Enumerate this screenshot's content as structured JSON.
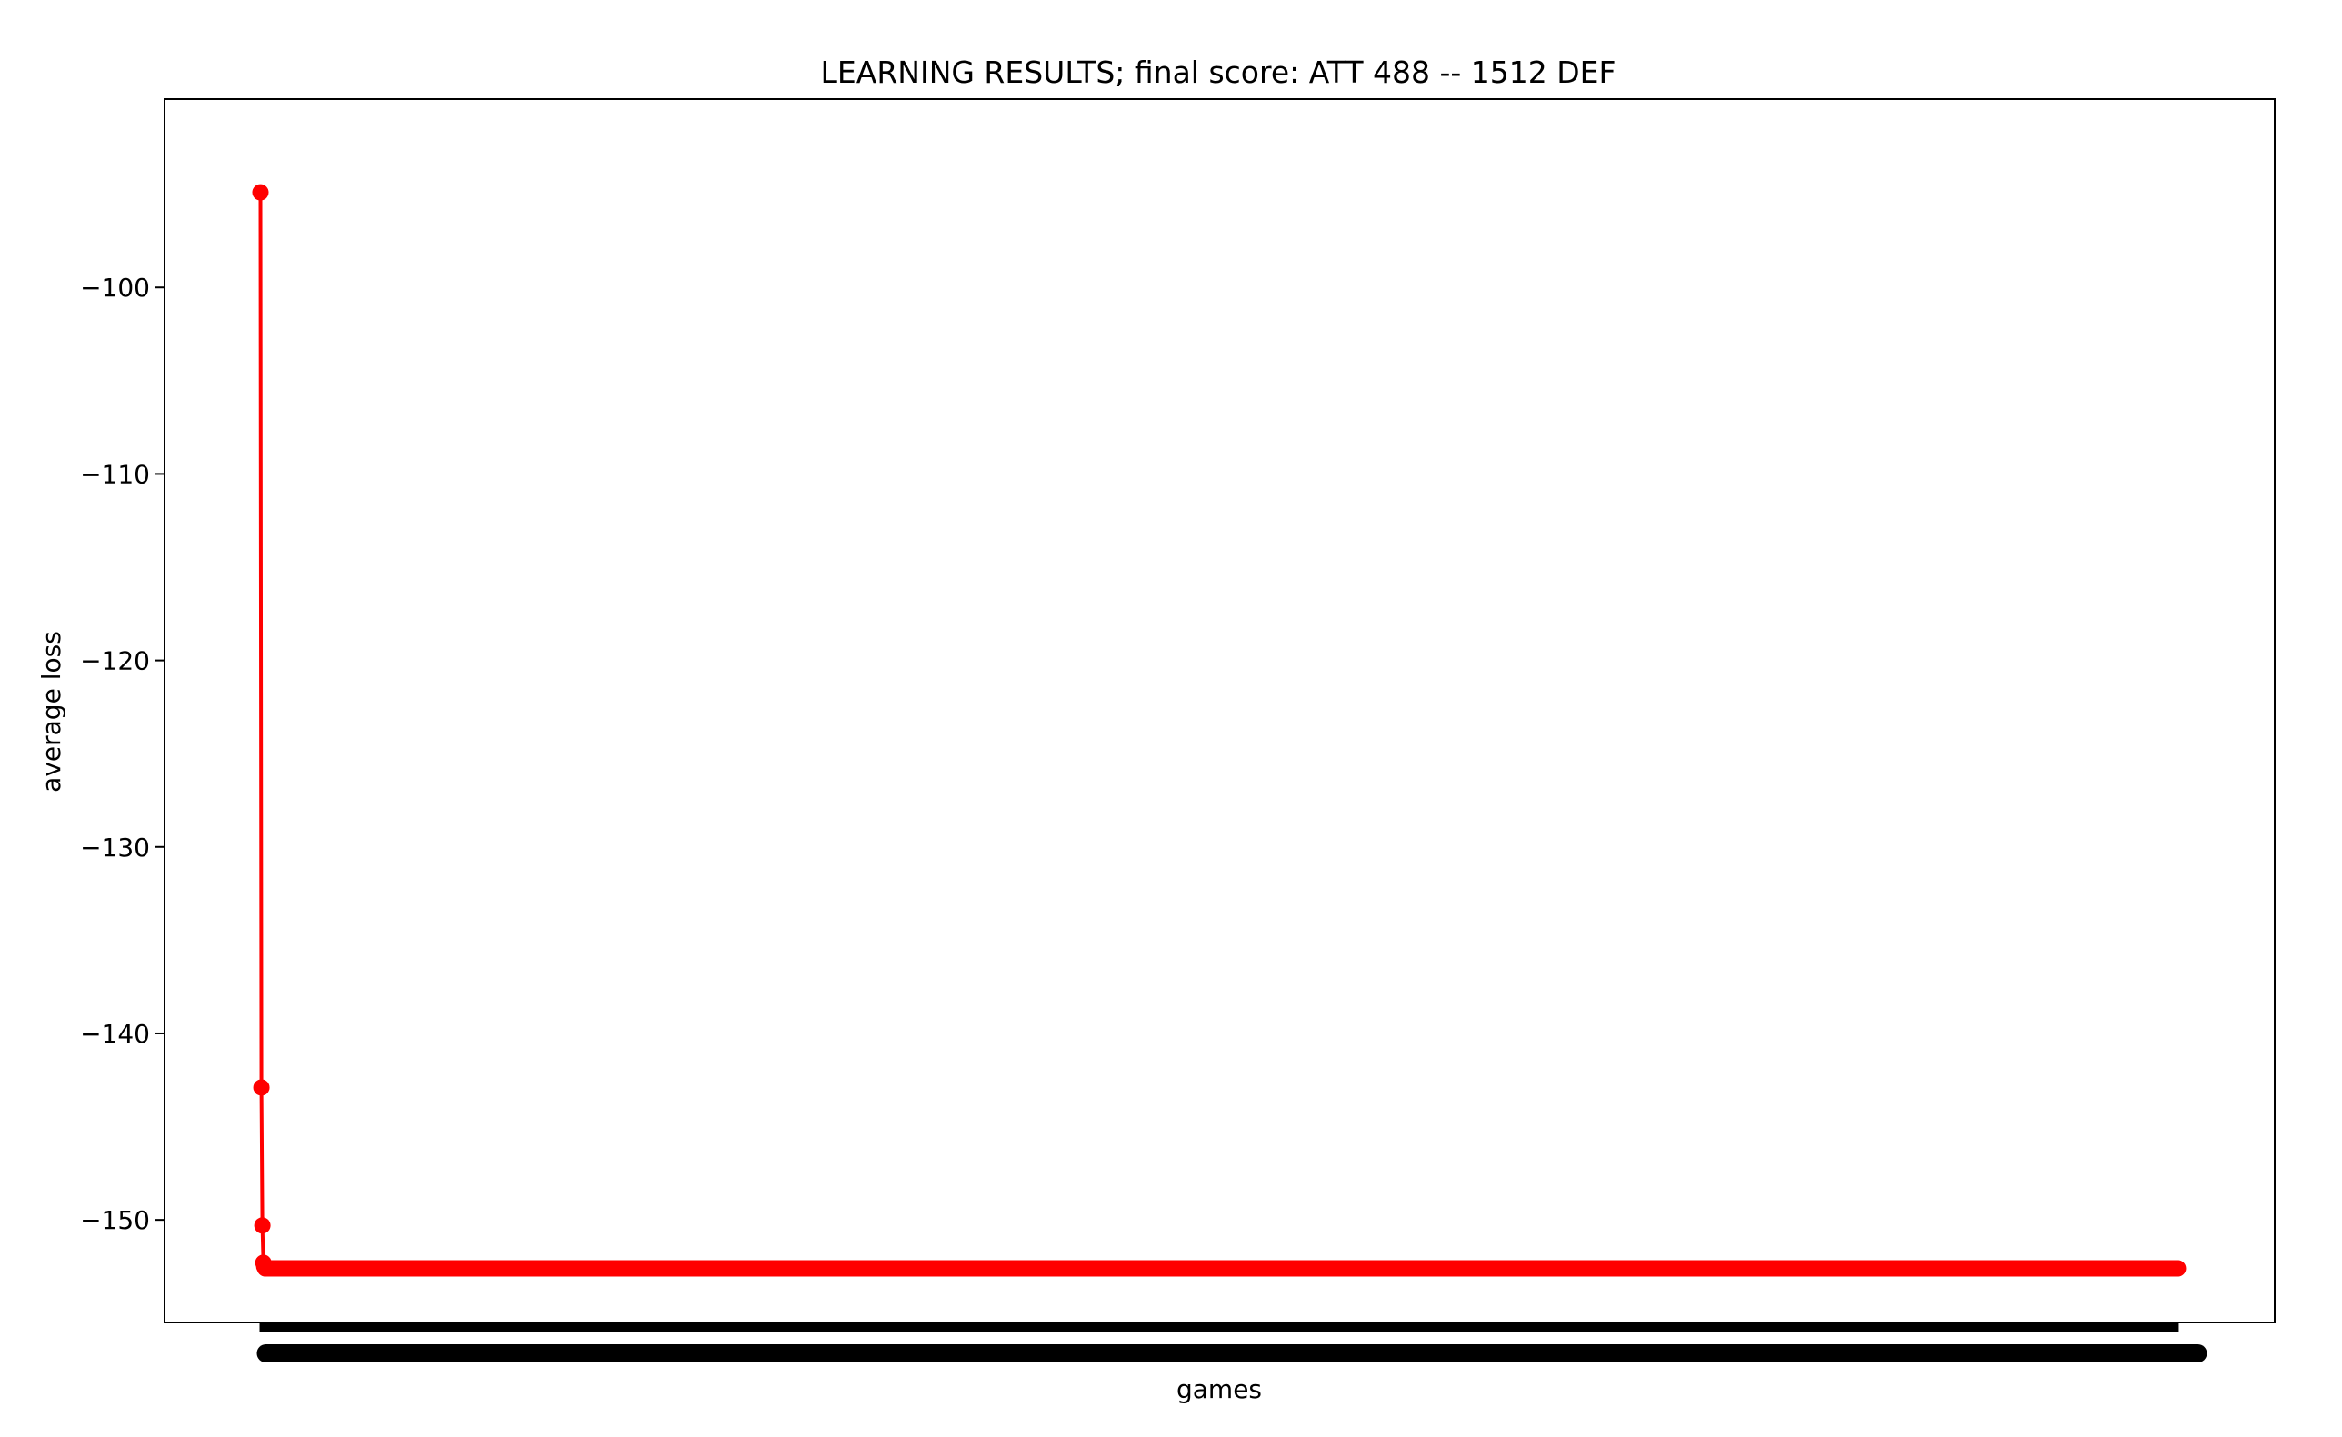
{
  "chart_data": {
    "type": "line",
    "title": "LEARNING RESULTS; final score: ATT 488 -- 1512 DEF",
    "xlabel": "games",
    "ylabel": "average loss",
    "xlim": [
      -100,
      2100
    ],
    "ylim": [
      -155.5,
      -89.9
    ],
    "yticks": [
      -100,
      -110,
      -120,
      -130,
      -140,
      -150
    ],
    "ytick_labels": [
      "−100",
      "−110",
      "−120",
      "−130",
      "−140",
      "−150"
    ],
    "xtick_range": [
      0,
      1999
    ],
    "xtick_labels_overlapping": true,
    "grid": false,
    "line_color": "#ff0000",
    "marker": "circle",
    "series": [
      {
        "head_values": [
          -94.9,
          -142.9,
          -150.3,
          -152.3,
          -152.5
        ],
        "tail_value": -152.6,
        "n_points": 2000
      }
    ]
  }
}
